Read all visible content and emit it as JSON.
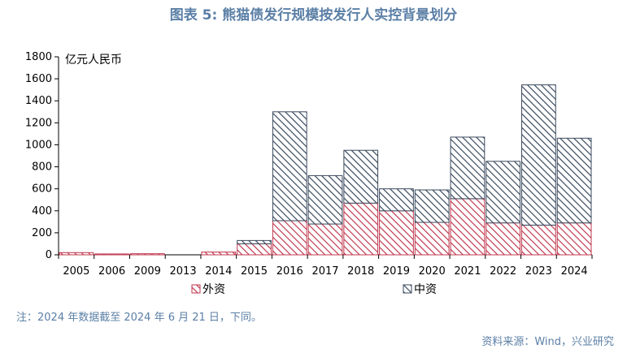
{
  "title": "图表 5: 熊猫债发行规模按发行人实控背景划分",
  "note": "注：2024 年数据截至 2024 年 6 月 21 日，下同。",
  "source": "资料来源：Wind，兴业研究",
  "colors": {
    "foreign": "#c0394f",
    "domestic": "#3a4a5e",
    "title": "#5b7fa6"
  },
  "chart_data": {
    "type": "bar",
    "stacked": true,
    "unit": "亿元人民币",
    "categories": [
      "2005",
      "2006",
      "2009",
      "2013",
      "2014",
      "2015",
      "2016",
      "2017",
      "2018",
      "2019",
      "2020",
      "2021",
      "2022",
      "2023",
      "2024"
    ],
    "series": [
      {
        "name": "外资",
        "values": [
          20,
          8,
          10,
          0,
          25,
          100,
          310,
          280,
          470,
          400,
          295,
          510,
          290,
          270,
          290
        ]
      },
      {
        "name": "中资",
        "values": [
          0,
          0,
          0,
          0,
          0,
          30,
          990,
          440,
          480,
          200,
          295,
          560,
          560,
          1275,
          770
        ]
      }
    ],
    "ylim": [
      0,
      1800
    ],
    "yticks": [
      0,
      200,
      400,
      600,
      800,
      1000,
      1200,
      1400,
      1600,
      1800
    ],
    "legend_position": "bottom"
  }
}
